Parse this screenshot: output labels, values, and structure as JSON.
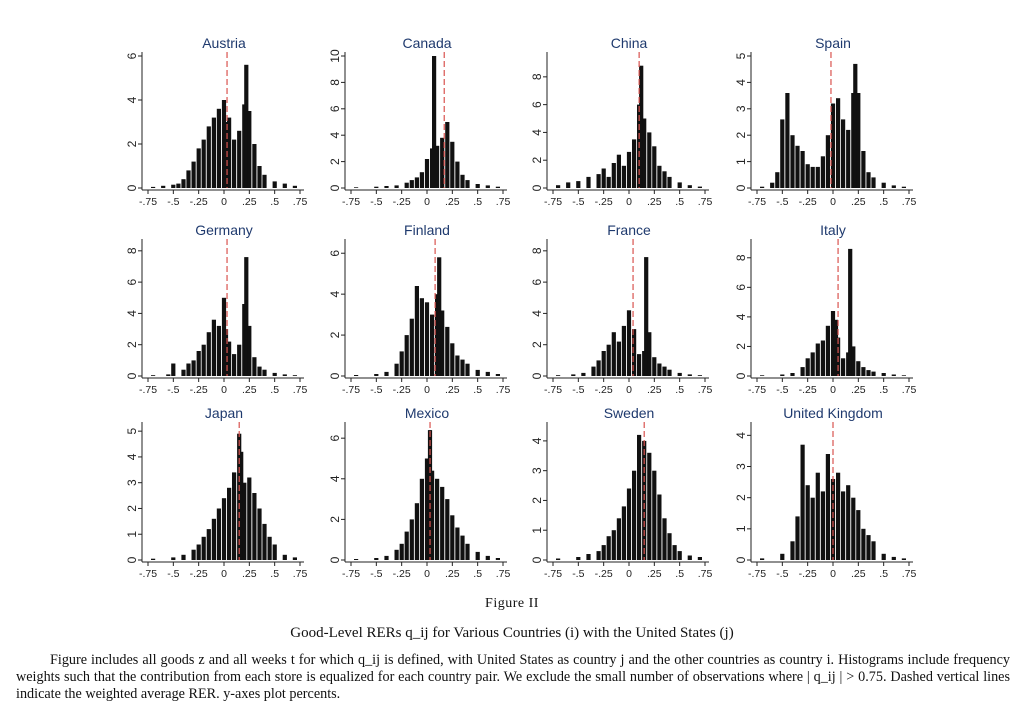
{
  "figure": {
    "label": "Figure II",
    "title": "Good-Level RERs q_ij for Various Countries (i) with the United States (j)",
    "notes": "Figure includes all goods z and all weeks t for which q_ij is defined, with United States as country j and the other countries as country i. Histograms include frequency weights such that the contribution from each store is equalized for each country pair. We exclude the small number of observations where | q_ij | > 0.75. Dashed vertical lines indicate the weighted average RER. y-axes plot percents."
  },
  "colors": {
    "bars": "#111111",
    "mean_line": "#d9534f",
    "title_text": "#1f3a6e",
    "axis": "#222222"
  },
  "chart_data": [
    {
      "type": "bar",
      "title": "Austria",
      "xlim": [
        -0.75,
        0.75
      ],
      "ylim": [
        0,
        6
      ],
      "yticks": [
        0,
        2,
        4,
        6
      ],
      "xtick_labels": [
        "-.75",
        "-.5",
        "-.25",
        "0",
        ".25",
        ".5",
        ".75"
      ],
      "mean": 0.03,
      "bins_x": [
        -0.7,
        -0.6,
        -0.5,
        -0.45,
        -0.4,
        -0.35,
        -0.3,
        -0.25,
        -0.2,
        -0.15,
        -0.1,
        -0.05,
        0.0,
        0.02,
        0.05,
        0.1,
        0.15,
        0.2,
        0.22,
        0.25,
        0.3,
        0.35,
        0.4,
        0.5,
        0.6,
        0.7
      ],
      "bins_y": [
        0.05,
        0.1,
        0.15,
        0.2,
        0.4,
        0.8,
        1.2,
        1.8,
        2.2,
        2.8,
        3.2,
        3.6,
        4.0,
        3.0,
        3.2,
        2.2,
        2.6,
        3.8,
        5.6,
        3.5,
        2.0,
        1.0,
        0.6,
        0.3,
        0.2,
        0.1
      ]
    },
    {
      "type": "bar",
      "title": "Canada",
      "xlim": [
        -0.75,
        0.75
      ],
      "ylim": [
        0,
        10
      ],
      "yticks": [
        0,
        2,
        4,
        6,
        8,
        10
      ],
      "xtick_labels": [
        "-.75",
        "-.5",
        "-.25",
        "0",
        ".25",
        ".5",
        ".75"
      ],
      "mean": 0.17,
      "bins_x": [
        -0.7,
        -0.5,
        -0.4,
        -0.3,
        -0.2,
        -0.15,
        -0.1,
        -0.05,
        0.0,
        0.05,
        0.07,
        0.1,
        0.15,
        0.2,
        0.25,
        0.3,
        0.35,
        0.4,
        0.5,
        0.6,
        0.7
      ],
      "bins_y": [
        0.05,
        0.1,
        0.15,
        0.2,
        0.4,
        0.6,
        0.8,
        1.2,
        2.2,
        3.0,
        10.0,
        3.2,
        3.8,
        5.0,
        3.5,
        2.0,
        1.0,
        0.6,
        0.3,
        0.2,
        0.1
      ]
    },
    {
      "type": "bar",
      "title": "China",
      "xlim": [
        -0.75,
        0.75
      ],
      "ylim": [
        0,
        9.5
      ],
      "yticks": [
        0,
        2,
        4,
        6,
        8
      ],
      "xtick_labels": [
        "-.75",
        "-.5",
        "-.25",
        "0",
        ".25",
        ".5",
        ".75"
      ],
      "mean": 0.1,
      "bins_x": [
        -0.7,
        -0.6,
        -0.5,
        -0.4,
        -0.3,
        -0.25,
        -0.2,
        -0.15,
        -0.1,
        -0.05,
        0.0,
        0.05,
        0.1,
        0.12,
        0.15,
        0.2,
        0.25,
        0.3,
        0.35,
        0.4,
        0.5,
        0.6,
        0.7
      ],
      "bins_y": [
        0.2,
        0.4,
        0.5,
        0.8,
        1.0,
        1.4,
        0.8,
        1.8,
        2.4,
        1.6,
        2.6,
        3.5,
        6.0,
        8.8,
        5.0,
        4.0,
        3.0,
        1.6,
        1.2,
        0.8,
        0.4,
        0.2,
        0.1
      ]
    },
    {
      "type": "bar",
      "title": "Spain",
      "xlim": [
        -0.75,
        0.75
      ],
      "ylim": [
        0,
        5
      ],
      "yticks": [
        0,
        1,
        2,
        3,
        4,
        5
      ],
      "xtick_labels": [
        "-.75",
        "-.5",
        "-.25",
        "0",
        ".25",
        ".5",
        ".75"
      ],
      "mean": -0.02,
      "bins_x": [
        -0.7,
        -0.6,
        -0.55,
        -0.5,
        -0.45,
        -0.4,
        -0.35,
        -0.3,
        -0.25,
        -0.2,
        -0.15,
        -0.1,
        -0.05,
        0.0,
        0.05,
        0.1,
        0.15,
        0.2,
        0.22,
        0.25,
        0.3,
        0.35,
        0.4,
        0.5,
        0.6,
        0.7
      ],
      "bins_y": [
        0.05,
        0.2,
        0.6,
        2.6,
        3.6,
        2.0,
        1.6,
        1.4,
        0.9,
        0.8,
        0.8,
        1.2,
        2.0,
        3.2,
        3.4,
        2.6,
        2.2,
        3.6,
        4.7,
        3.6,
        1.4,
        0.6,
        0.4,
        0.2,
        0.1,
        0.05
      ]
    },
    {
      "type": "bar",
      "title": "Germany",
      "xlim": [
        -0.75,
        0.75
      ],
      "ylim": [
        0,
        8.5
      ],
      "yticks": [
        0,
        2,
        4,
        6,
        8
      ],
      "xtick_labels": [
        "-.75",
        "-.5",
        "-.25",
        "0",
        ".25",
        ".5",
        ".75"
      ],
      "mean": 0.03,
      "bins_x": [
        -0.7,
        -0.55,
        -0.5,
        -0.4,
        -0.35,
        -0.3,
        -0.25,
        -0.2,
        -0.15,
        -0.1,
        -0.05,
        0.0,
        0.02,
        0.05,
        0.1,
        0.15,
        0.2,
        0.22,
        0.25,
        0.3,
        0.35,
        0.4,
        0.5,
        0.6,
        0.7
      ],
      "bins_y": [
        0.05,
        0.1,
        0.8,
        0.4,
        0.8,
        1.0,
        1.6,
        2.0,
        2.8,
        3.6,
        3.2,
        5.0,
        3.0,
        2.2,
        1.4,
        2.0,
        4.6,
        7.6,
        3.2,
        1.2,
        0.6,
        0.4,
        0.2,
        0.1,
        0.05
      ]
    },
    {
      "type": "bar",
      "title": "Finland",
      "xlim": [
        -0.75,
        0.75
      ],
      "ylim": [
        0,
        6.5
      ],
      "yticks": [
        0,
        2,
        4,
        6
      ],
      "xtick_labels": [
        "-.75",
        "-.5",
        "-.25",
        "0",
        ".25",
        ".5",
        ".75"
      ],
      "mean": 0.08,
      "bins_x": [
        -0.7,
        -0.5,
        -0.4,
        -0.3,
        -0.25,
        -0.2,
        -0.15,
        -0.1,
        -0.05,
        0.0,
        0.05,
        0.1,
        0.12,
        0.15,
        0.2,
        0.25,
        0.3,
        0.35,
        0.4,
        0.5,
        0.6,
        0.7
      ],
      "bins_y": [
        0.05,
        0.1,
        0.2,
        0.6,
        1.2,
        2.0,
        2.8,
        4.4,
        3.8,
        3.6,
        3.0,
        4.0,
        5.8,
        3.2,
        2.4,
        1.6,
        1.0,
        0.8,
        0.6,
        0.3,
        0.2,
        0.1
      ]
    },
    {
      "type": "bar",
      "title": "France",
      "xlim": [
        -0.75,
        0.75
      ],
      "ylim": [
        0,
        8.5
      ],
      "yticks": [
        0,
        2,
        4,
        6,
        8
      ],
      "xtick_labels": [
        "-.75",
        "-.5",
        "-.25",
        "0",
        ".25",
        ".5",
        ".75"
      ],
      "mean": 0.04,
      "bins_x": [
        -0.7,
        -0.55,
        -0.45,
        -0.35,
        -0.3,
        -0.25,
        -0.2,
        -0.15,
        -0.1,
        -0.05,
        0.0,
        0.05,
        0.1,
        0.15,
        0.17,
        0.2,
        0.25,
        0.3,
        0.35,
        0.4,
        0.5,
        0.6,
        0.7
      ],
      "bins_y": [
        0.05,
        0.1,
        0.2,
        0.6,
        1.0,
        1.6,
        2.0,
        2.8,
        2.2,
        3.2,
        4.2,
        3.0,
        1.4,
        1.6,
        7.6,
        2.8,
        1.2,
        0.8,
        0.6,
        0.4,
        0.2,
        0.1,
        0.05
      ]
    },
    {
      "type": "bar",
      "title": "Italy",
      "xlim": [
        -0.75,
        0.75
      ],
      "ylim": [
        0,
        9
      ],
      "yticks": [
        0,
        2,
        4,
        6,
        8
      ],
      "xtick_labels": [
        "-.75",
        "-.5",
        "-.25",
        "0",
        ".25",
        ".5",
        ".75"
      ],
      "mean": 0.05,
      "bins_x": [
        -0.7,
        -0.5,
        -0.4,
        -0.3,
        -0.25,
        -0.2,
        -0.15,
        -0.1,
        -0.05,
        0.0,
        0.03,
        0.05,
        0.1,
        0.15,
        0.17,
        0.2,
        0.25,
        0.3,
        0.35,
        0.4,
        0.5,
        0.6,
        0.7
      ],
      "bins_y": [
        0.05,
        0.1,
        0.2,
        0.6,
        1.2,
        1.6,
        2.2,
        2.4,
        3.4,
        4.4,
        3.8,
        2.6,
        1.2,
        1.6,
        8.6,
        2.0,
        1.0,
        0.6,
        0.4,
        0.3,
        0.2,
        0.1,
        0.05
      ]
    },
    {
      "type": "bar",
      "title": "Japan",
      "xlim": [
        -0.75,
        0.75
      ],
      "ylim": [
        0,
        5.2
      ],
      "yticks": [
        0,
        1,
        2,
        3,
        4,
        5
      ],
      "xtick_labels": [
        "-.75",
        "-.5",
        "-.25",
        "0",
        ".25",
        ".5",
        ".75"
      ],
      "mean": 0.15,
      "bins_x": [
        -0.7,
        -0.5,
        -0.4,
        -0.3,
        -0.25,
        -0.2,
        -0.15,
        -0.1,
        -0.05,
        0.0,
        0.05,
        0.1,
        0.15,
        0.17,
        0.2,
        0.25,
        0.3,
        0.35,
        0.4,
        0.45,
        0.5,
        0.6,
        0.7
      ],
      "bins_y": [
        0.05,
        0.1,
        0.2,
        0.4,
        0.6,
        0.9,
        1.2,
        1.6,
        2.0,
        2.4,
        2.8,
        3.4,
        4.9,
        4.2,
        3.0,
        3.2,
        2.6,
        2.0,
        1.4,
        0.9,
        0.6,
        0.2,
        0.1
      ]
    },
    {
      "type": "bar",
      "title": "Mexico",
      "xlim": [
        -0.75,
        0.75
      ],
      "ylim": [
        0,
        6.6
      ],
      "yticks": [
        0,
        2,
        4,
        6
      ],
      "xtick_labels": [
        "-.75",
        "-.5",
        "-.25",
        "0",
        ".25",
        ".5",
        ".75"
      ],
      "mean": 0.03,
      "bins_x": [
        -0.7,
        -0.5,
        -0.4,
        -0.3,
        -0.25,
        -0.2,
        -0.15,
        -0.1,
        -0.05,
        0.0,
        0.03,
        0.05,
        0.1,
        0.15,
        0.2,
        0.25,
        0.3,
        0.35,
        0.4,
        0.5,
        0.6,
        0.7
      ],
      "bins_y": [
        0.05,
        0.1,
        0.2,
        0.5,
        0.8,
        1.4,
        2.0,
        2.8,
        4.0,
        5.0,
        6.4,
        4.4,
        4.0,
        3.6,
        3.0,
        2.2,
        1.6,
        1.2,
        0.8,
        0.4,
        0.2,
        0.1
      ]
    },
    {
      "type": "bar",
      "title": "Sweden",
      "xlim": [
        -0.75,
        0.75
      ],
      "ylim": [
        0,
        4.5
      ],
      "yticks": [
        0,
        1,
        2,
        3,
        4
      ],
      "xtick_labels": [
        "-.75",
        "-.5",
        "-.25",
        "0",
        ".25",
        ".5",
        ".75"
      ],
      "mean": 0.15,
      "bins_x": [
        -0.7,
        -0.5,
        -0.4,
        -0.3,
        -0.25,
        -0.2,
        -0.15,
        -0.1,
        -0.05,
        0.0,
        0.05,
        0.1,
        0.15,
        0.2,
        0.25,
        0.3,
        0.35,
        0.4,
        0.45,
        0.5,
        0.6,
        0.7
      ],
      "bins_y": [
        0.05,
        0.1,
        0.2,
        0.3,
        0.5,
        0.8,
        1.0,
        1.4,
        1.8,
        2.4,
        3.0,
        4.2,
        4.0,
        3.6,
        3.0,
        2.2,
        1.4,
        0.9,
        0.5,
        0.3,
        0.15,
        0.1
      ]
    },
    {
      "type": "bar",
      "title": "United Kingdom",
      "xlim": [
        -0.75,
        0.75
      ],
      "ylim": [
        0,
        4.3
      ],
      "yticks": [
        0,
        1,
        2,
        3,
        4
      ],
      "xtick_labels": [
        "-.75",
        "-.5",
        "-.25",
        "0",
        ".25",
        ".5",
        ".75"
      ],
      "mean": 0.0,
      "bins_x": [
        -0.7,
        -0.5,
        -0.4,
        -0.35,
        -0.3,
        -0.25,
        -0.2,
        -0.15,
        -0.1,
        -0.05,
        0.0,
        0.05,
        0.1,
        0.15,
        0.2,
        0.25,
        0.3,
        0.35,
        0.4,
        0.5,
        0.6,
        0.7
      ],
      "bins_y": [
        0.05,
        0.2,
        0.6,
        1.4,
        3.7,
        2.4,
        2.0,
        2.8,
        2.2,
        3.4,
        2.6,
        2.8,
        2.2,
        2.4,
        2.0,
        1.6,
        1.0,
        0.8,
        0.6,
        0.2,
        0.1,
        0.05
      ]
    }
  ]
}
